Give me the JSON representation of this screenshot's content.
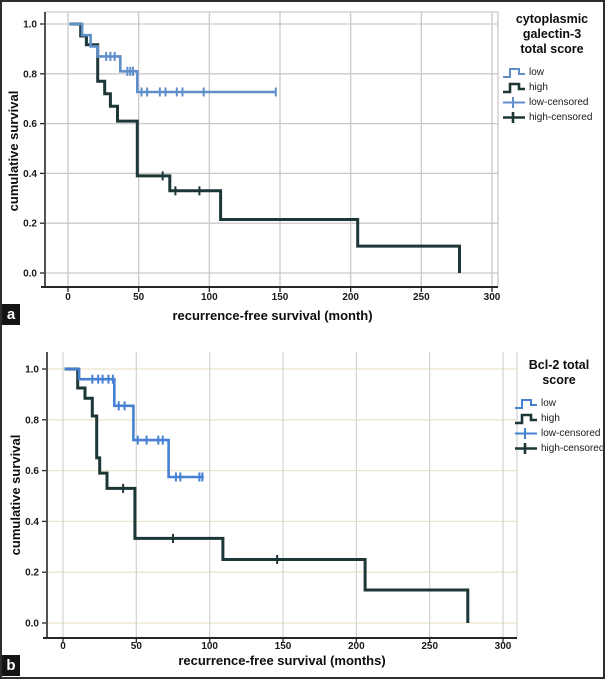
{
  "figure": {
    "panels": [
      {
        "id": "a",
        "badge": "a"
      },
      {
        "id": "b",
        "badge": "b"
      }
    ]
  },
  "chart_data": [
    {
      "type": "line",
      "subtype": "kaplan-meier-step",
      "panel": "a",
      "legend_title_lines": [
        "cytoplasmic",
        "galectin-3",
        "total score"
      ],
      "xlabel": "recurrence-free survival (month)",
      "ylabel": "cumulative survival",
      "xlim": [
        0,
        300
      ],
      "ylim": [
        0.0,
        1.0
      ],
      "grid_on": true,
      "legend_position": "right",
      "xticks": [
        {
          "value": 0,
          "label": "0"
        },
        {
          "value": 50,
          "label": "50"
        },
        {
          "value": 100,
          "label": "100"
        },
        {
          "value": 150,
          "label": "150"
        },
        {
          "value": 200,
          "label": "200"
        },
        {
          "value": 250,
          "label": "250"
        },
        {
          "value": 300,
          "label": "300"
        }
      ],
      "yticks": [
        {
          "value": 1.0,
          "label": "1.0"
        },
        {
          "value": 0.8,
          "label": "0.8"
        },
        {
          "value": 0.6,
          "label": "0.6"
        },
        {
          "value": 0.4,
          "label": "0.4"
        },
        {
          "value": 0.2,
          "label": "0.2"
        },
        {
          "value": 0.0,
          "label": "0.0"
        }
      ],
      "grid": {
        "vertical": "#c9c9c9",
        "horizontal": "#c9c9c9"
      },
      "legend": [
        {
          "label": "low",
          "symbol": "step",
          "color": "#5f8fca"
        },
        {
          "label": "high",
          "symbol": "step",
          "color": "#1d3737"
        },
        {
          "label": "low-censored",
          "symbol": "plus",
          "color": "#5f8fca"
        },
        {
          "label": "high-censored",
          "symbol": "plus",
          "color": "#1d3737"
        }
      ],
      "series": [
        {
          "name": "low",
          "color": "#5f8fca",
          "steps": [
            [
              1,
              1.0
            ],
            [
              10,
              1.0
            ],
            [
              10,
              0.955
            ],
            [
              16,
              0.955
            ],
            [
              16,
              0.91
            ],
            [
              21,
              0.91
            ],
            [
              21,
              0.87
            ],
            [
              37,
              0.87
            ],
            [
              37,
              0.81
            ],
            [
              49,
              0.81
            ],
            [
              49,
              0.727
            ],
            [
              147,
              0.727
            ]
          ],
          "censored": [
            [
              27,
              0.87
            ],
            [
              30,
              0.87
            ],
            [
              33,
              0.87
            ],
            [
              42,
              0.81
            ],
            [
              44,
              0.81
            ],
            [
              46,
              0.81
            ],
            [
              52,
              0.727
            ],
            [
              56,
              0.727
            ],
            [
              65,
              0.727
            ],
            [
              69,
              0.727
            ],
            [
              77,
              0.727
            ],
            [
              81,
              0.727
            ],
            [
              96,
              0.727
            ],
            [
              147,
              0.727
            ]
          ]
        },
        {
          "name": "high",
          "color": "#1d3737",
          "steps": [
            [
              1,
              1.0
            ],
            [
              9,
              1.0
            ],
            [
              9,
              0.952
            ],
            [
              13,
              0.952
            ],
            [
              13,
              0.917
            ],
            [
              21,
              0.917
            ],
            [
              21,
              0.77
            ],
            [
              26,
              0.77
            ],
            [
              26,
              0.72
            ],
            [
              30,
              0.72
            ],
            [
              30,
              0.67
            ],
            [
              35,
              0.67
            ],
            [
              35,
              0.61
            ],
            [
              49,
              0.61
            ],
            [
              49,
              0.39
            ],
            [
              72,
              0.39
            ],
            [
              72,
              0.33
            ],
            [
              108,
              0.33
            ],
            [
              108,
              0.215
            ],
            [
              205,
              0.215
            ],
            [
              205,
              0.108
            ],
            [
              277,
              0.108
            ],
            [
              277,
              0.0
            ]
          ],
          "censored": [
            [
              67,
              0.39
            ],
            [
              76,
              0.33
            ],
            [
              93,
              0.33
            ]
          ]
        }
      ]
    },
    {
      "type": "line",
      "subtype": "kaplan-meier-step",
      "panel": "b",
      "legend_title_lines": [
        "Bcl-2 total",
        "score"
      ],
      "xlabel": "recurrence-free survival (months)",
      "ylabel": "cumulative survival",
      "xlim": [
        0,
        300
      ],
      "ylim": [
        0.0,
        1.0
      ],
      "grid_on": true,
      "legend_position": "right",
      "xticks": [
        {
          "value": 0,
          "label": "0"
        },
        {
          "value": 50,
          "label": "50"
        },
        {
          "value": 100,
          "label": "100"
        },
        {
          "value": 150,
          "label": "150"
        },
        {
          "value": 200,
          "label": "200"
        },
        {
          "value": 250,
          "label": "250"
        },
        {
          "value": 300,
          "label": "300"
        }
      ],
      "yticks": [
        {
          "value": 1.0,
          "label": "1.0"
        },
        {
          "value": 0.8,
          "label": "0.8"
        },
        {
          "value": 0.6,
          "label": "0.6"
        },
        {
          "value": 0.4,
          "label": "0.4"
        },
        {
          "value": 0.2,
          "label": "0.2"
        },
        {
          "value": 0.0,
          "label": "0.0"
        }
      ],
      "grid": {
        "vertical": "#d4d7d1",
        "horizontal": "#ece4cb"
      },
      "legend": [
        {
          "label": "low",
          "symbol": "step",
          "color": "#4680d2"
        },
        {
          "label": "high",
          "symbol": "step",
          "color": "#1d3737"
        },
        {
          "label": "low-censored",
          "symbol": "plus",
          "color": "#4680d2"
        },
        {
          "label": "high-censored",
          "symbol": "plus",
          "color": "#1d3737"
        }
      ],
      "series": [
        {
          "name": "low",
          "color": "#4680d2",
          "steps": [
            [
              1,
              1.0
            ],
            [
              11,
              1.0
            ],
            [
              11,
              0.96
            ],
            [
              35,
              0.96
            ],
            [
              35,
              0.855
            ],
            [
              48,
              0.855
            ],
            [
              48,
              0.72
            ],
            [
              72,
              0.72
            ],
            [
              72,
              0.575
            ],
            [
              96,
              0.575
            ]
          ],
          "censored": [
            [
              20,
              0.96
            ],
            [
              24,
              0.96
            ],
            [
              27,
              0.96
            ],
            [
              31,
              0.96
            ],
            [
              34,
              0.96
            ],
            [
              38,
              0.855
            ],
            [
              42,
              0.855
            ],
            [
              51,
              0.72
            ],
            [
              57,
              0.72
            ],
            [
              65,
              0.72
            ],
            [
              68,
              0.72
            ],
            [
              77,
              0.575
            ],
            [
              80,
              0.575
            ],
            [
              93,
              0.575
            ],
            [
              95,
              0.575
            ]
          ]
        },
        {
          "name": "high",
          "color": "#1d3737",
          "steps": [
            [
              1,
              1.0
            ],
            [
              10,
              1.0
            ],
            [
              10,
              0.925
            ],
            [
              15,
              0.925
            ],
            [
              15,
              0.885
            ],
            [
              20,
              0.885
            ],
            [
              20,
              0.815
            ],
            [
              23,
              0.815
            ],
            [
              23,
              0.65
            ],
            [
              25,
              0.65
            ],
            [
              25,
              0.59
            ],
            [
              30,
              0.59
            ],
            [
              30,
              0.53
            ],
            [
              49,
              0.53
            ],
            [
              49,
              0.333
            ],
            [
              109,
              0.333
            ],
            [
              109,
              0.25
            ],
            [
              206,
              0.25
            ],
            [
              206,
              0.13
            ],
            [
              276,
              0.13
            ],
            [
              276,
              0.0
            ]
          ],
          "censored": [
            [
              41,
              0.53
            ],
            [
              75,
              0.333
            ],
            [
              146,
              0.25
            ]
          ]
        }
      ]
    }
  ]
}
